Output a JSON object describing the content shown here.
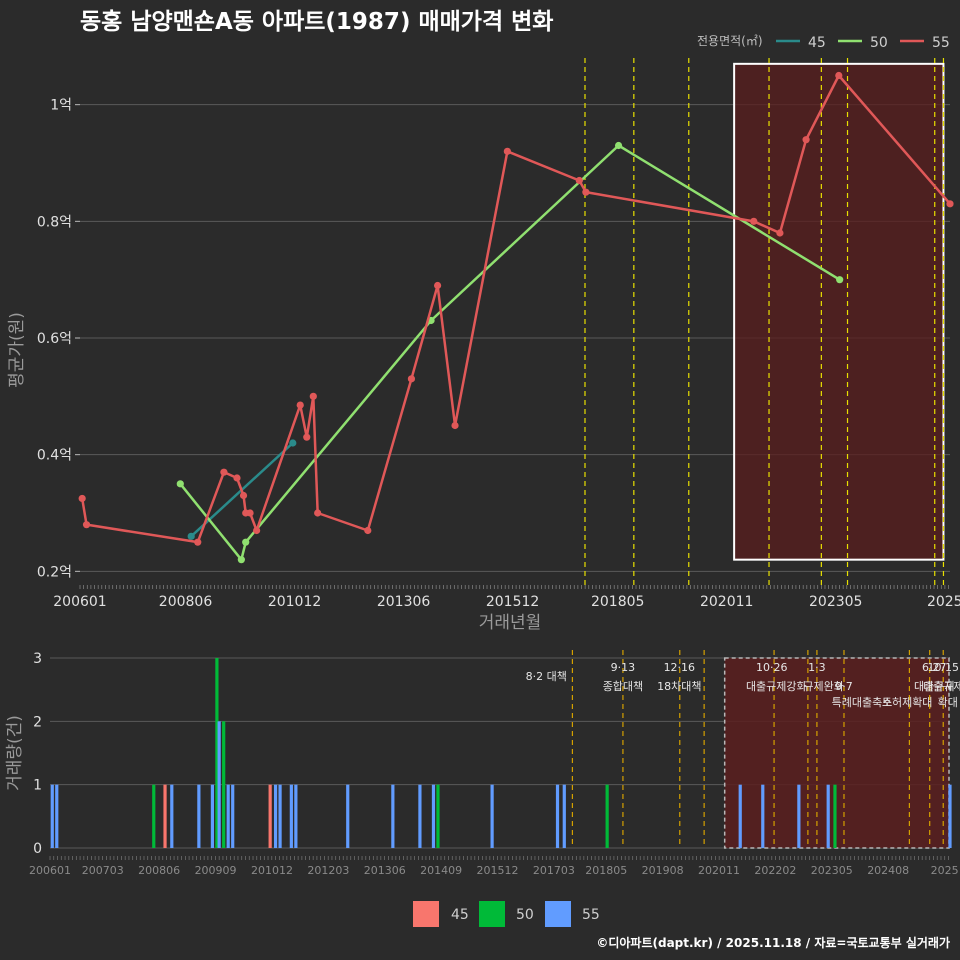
{
  "title": "동홍 남양맨숀A동 아파트(1987) 매매가격 변화",
  "footer": "©디아파트(dapt.kr) / 2025.11.18 / 자료=국토교통부 실거래가",
  "colors": {
    "s45": "#2a8b8b",
    "s50": "#90e070",
    "s55": "#e05858",
    "b45": "#f8766d",
    "b50": "#00ba38",
    "b55": "#619cff",
    "policy_line": "#e8e000",
    "policy_line_bottom": "#d4a000",
    "highlight_fill": "#5a1e1e",
    "background": "#2b2b2b"
  },
  "chart_data": [
    {
      "type": "line",
      "title": "동홍 남양맨숀A동 아파트(1987) 매매가격 변화",
      "xlabel": "거래년월",
      "ylabel": "평균가(원)",
      "x_range": [
        2006.0,
        2025.95
      ],
      "y_range": [
        0.18,
        1.08
      ],
      "y_ticks": [
        0.2,
        0.4,
        0.6,
        0.8,
        1.0
      ],
      "y_tick_labels": [
        "0.2억",
        "0.4억",
        "0.6억",
        "0.8억",
        "1억"
      ],
      "x_ticks": [
        2006.0,
        2008.42,
        2010.92,
        2013.42,
        2015.92,
        2018.33,
        2020.83,
        2023.33,
        2025.83
      ],
      "x_tick_labels": [
        "200601",
        "200806",
        "201012",
        "201306",
        "201512",
        "201805",
        "202011",
        "202305",
        "2025"
      ],
      "legend_title": "전용면적(㎡)",
      "legend_position": "top-right",
      "policy_lines_x": [
        2017.58,
        2018.7,
        2019.96,
        2021.8,
        2023.0,
        2023.6,
        2025.6,
        2025.8
      ],
      "highlight_range_x": [
        2021.0,
        2025.8
      ],
      "highlight_range_y": [
        0.22,
        1.07
      ],
      "series": [
        {
          "name": "45",
          "x": [
            2008.55,
            2010.88
          ],
          "y": [
            0.26,
            0.42
          ]
        },
        {
          "name": "50",
          "x": [
            2008.3,
            2009.7,
            2009.8,
            2014.05,
            2018.35,
            2023.42
          ],
          "y": [
            0.35,
            0.22,
            0.25,
            0.63,
            0.93,
            0.7
          ]
        },
        {
          "name": "55",
          "x": [
            2006.05,
            2006.15,
            2008.7,
            2009.3,
            2009.6,
            2009.75,
            2009.8,
            2009.9,
            2010.05,
            2011.05,
            2011.2,
            2011.35,
            2011.45,
            2012.6,
            2013.6,
            2014.2,
            2014.6,
            2015.8,
            2017.45,
            2017.6,
            2021.45,
            2022.05,
            2022.65,
            2023.4,
            2025.95
          ],
          "y": [
            0.325,
            0.28,
            0.25,
            0.37,
            0.36,
            0.33,
            0.3,
            0.3,
            0.27,
            0.485,
            0.43,
            0.5,
            0.3,
            0.27,
            0.53,
            0.69,
            0.45,
            0.92,
            0.87,
            0.85,
            0.8,
            0.78,
            0.94,
            1.05,
            0.83
          ]
        }
      ]
    },
    {
      "type": "bar",
      "ylabel": "거래량(건)",
      "x_range": [
        2006.0,
        2025.95
      ],
      "y_range": [
        0,
        3
      ],
      "y_ticks": [
        0,
        1,
        2,
        3
      ],
      "x_tick_labels": [
        "200601",
        "200703",
        "200806",
        "200909",
        "201012",
        "201203",
        "201306",
        "201409",
        "201512",
        "201703",
        "201805",
        "201908",
        "202011",
        "202202",
        "202305",
        "202408",
        "2025"
      ],
      "x_ticks": [
        2006.0,
        2007.17,
        2008.42,
        2009.67,
        2010.92,
        2012.17,
        2013.42,
        2014.67,
        2015.92,
        2017.17,
        2018.33,
        2019.58,
        2020.83,
        2022.08,
        2023.33,
        2024.58,
        2025.83
      ],
      "legend": [
        "45",
        "50",
        "55"
      ],
      "legend_position": "bottom",
      "bars": [
        {
          "series": "55",
          "x": 2006.05,
          "v": 1
        },
        {
          "series": "55",
          "x": 2006.15,
          "v": 1
        },
        {
          "series": "50",
          "x": 2008.3,
          "v": 1
        },
        {
          "series": "45",
          "x": 2008.55,
          "v": 1
        },
        {
          "series": "55",
          "x": 2008.7,
          "v": 1
        },
        {
          "series": "55",
          "x": 2009.3,
          "v": 1
        },
        {
          "series": "55",
          "x": 2009.6,
          "v": 1
        },
        {
          "series": "50",
          "x": 2009.7,
          "v": 3
        },
        {
          "series": "55",
          "x": 2009.75,
          "v": 2
        },
        {
          "series": "50",
          "x": 2009.85,
          "v": 2
        },
        {
          "series": "55",
          "x": 2009.95,
          "v": 1
        },
        {
          "series": "55",
          "x": 2010.05,
          "v": 1
        },
        {
          "series": "45",
          "x": 2010.88,
          "v": 1
        },
        {
          "series": "55",
          "x": 2011.0,
          "v": 1
        },
        {
          "series": "55",
          "x": 2011.1,
          "v": 1
        },
        {
          "series": "55",
          "x": 2011.35,
          "v": 1
        },
        {
          "series": "55",
          "x": 2011.45,
          "v": 1
        },
        {
          "series": "55",
          "x": 2012.6,
          "v": 1
        },
        {
          "series": "55",
          "x": 2013.6,
          "v": 1
        },
        {
          "series": "55",
          "x": 2014.2,
          "v": 1
        },
        {
          "series": "55",
          "x": 2014.5,
          "v": 1
        },
        {
          "series": "50",
          "x": 2014.6,
          "v": 1
        },
        {
          "series": "55",
          "x": 2015.8,
          "v": 1
        },
        {
          "series": "55",
          "x": 2017.25,
          "v": 1
        },
        {
          "series": "55",
          "x": 2017.4,
          "v": 1
        },
        {
          "series": "50",
          "x": 2018.35,
          "v": 1
        },
        {
          "series": "55",
          "x": 2021.3,
          "v": 1
        },
        {
          "series": "55",
          "x": 2021.8,
          "v": 1
        },
        {
          "series": "55",
          "x": 2022.6,
          "v": 1
        },
        {
          "series": "55",
          "x": 2023.25,
          "v": 1
        },
        {
          "series": "50",
          "x": 2023.4,
          "v": 1
        },
        {
          "series": "55",
          "x": 2025.95,
          "v": 1
        }
      ],
      "policy_lines_x": [
        2017.58,
        2018.7,
        2019.96,
        2020.5,
        2022.05,
        2022.8,
        2023.0,
        2023.6,
        2025.05,
        2025.5,
        2025.8
      ],
      "highlight_range_x": [
        2021.0,
        2025.95
      ],
      "annotations": [
        {
          "x": 2017.0,
          "row": 1,
          "text": "8·2 대책"
        },
        {
          "x": 2018.7,
          "row": 0,
          "text": "9·13"
        },
        {
          "x": 2018.7,
          "row": 2,
          "text": "종합대책"
        },
        {
          "x": 2019.95,
          "row": 0,
          "text": "12·16"
        },
        {
          "x": 2019.95,
          "row": 2,
          "text": "18차대책"
        },
        {
          "x": 2022.0,
          "row": 0,
          "text": "10·26"
        },
        {
          "x": 2022.1,
          "row": 2,
          "text": "대출규제강화"
        },
        {
          "x": 2023.0,
          "row": 0,
          "text": "1·3"
        },
        {
          "x": 2023.15,
          "row": 2,
          "text": "규제완화"
        },
        {
          "x": 2023.6,
          "row": 2,
          "text": "9·7"
        },
        {
          "x": 2024.0,
          "row": 3,
          "text": "특례대출축소"
        },
        {
          "x": 2025.0,
          "row": 3,
          "text": "토허제확대"
        },
        {
          "x": 2025.6,
          "row": 0,
          "text": "6·27"
        },
        {
          "x": 2025.6,
          "row": 2,
          "text": "대출규제"
        },
        {
          "x": 2025.8,
          "row": 0,
          "text": "10·15"
        },
        {
          "x": 2025.8,
          "row": 2,
          "text": "대출규제"
        },
        {
          "x": 2025.9,
          "row": 3,
          "text": "확대"
        }
      ]
    }
  ]
}
